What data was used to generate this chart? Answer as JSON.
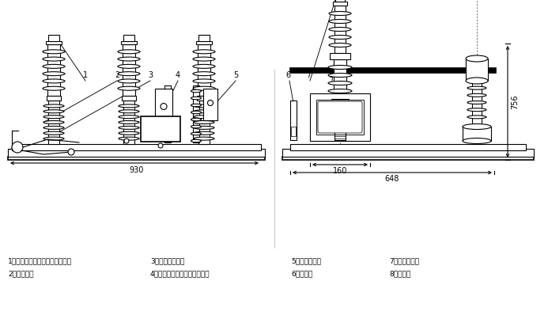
{
  "bg_color": "#ffffff",
  "line_color": "#000000",
  "fig_width": 6.93,
  "fig_height": 3.98,
  "dpi": 100,
  "labels": {
    "1": "1．上绝缘筒（内有真空灭弧室）",
    "2": "2．下绝缘筒",
    "3": "3．手动分闸手柄",
    "4": "4．机箱（内装永磁操动机构）",
    "5": "5．电压互感器",
    "6": "6．下出线",
    "7": "7．电流互感器",
    "8": "8．上出线"
  },
  "dim_930": "930",
  "dim_756": "756",
  "dim_160": "160",
  "dim_648": "648"
}
